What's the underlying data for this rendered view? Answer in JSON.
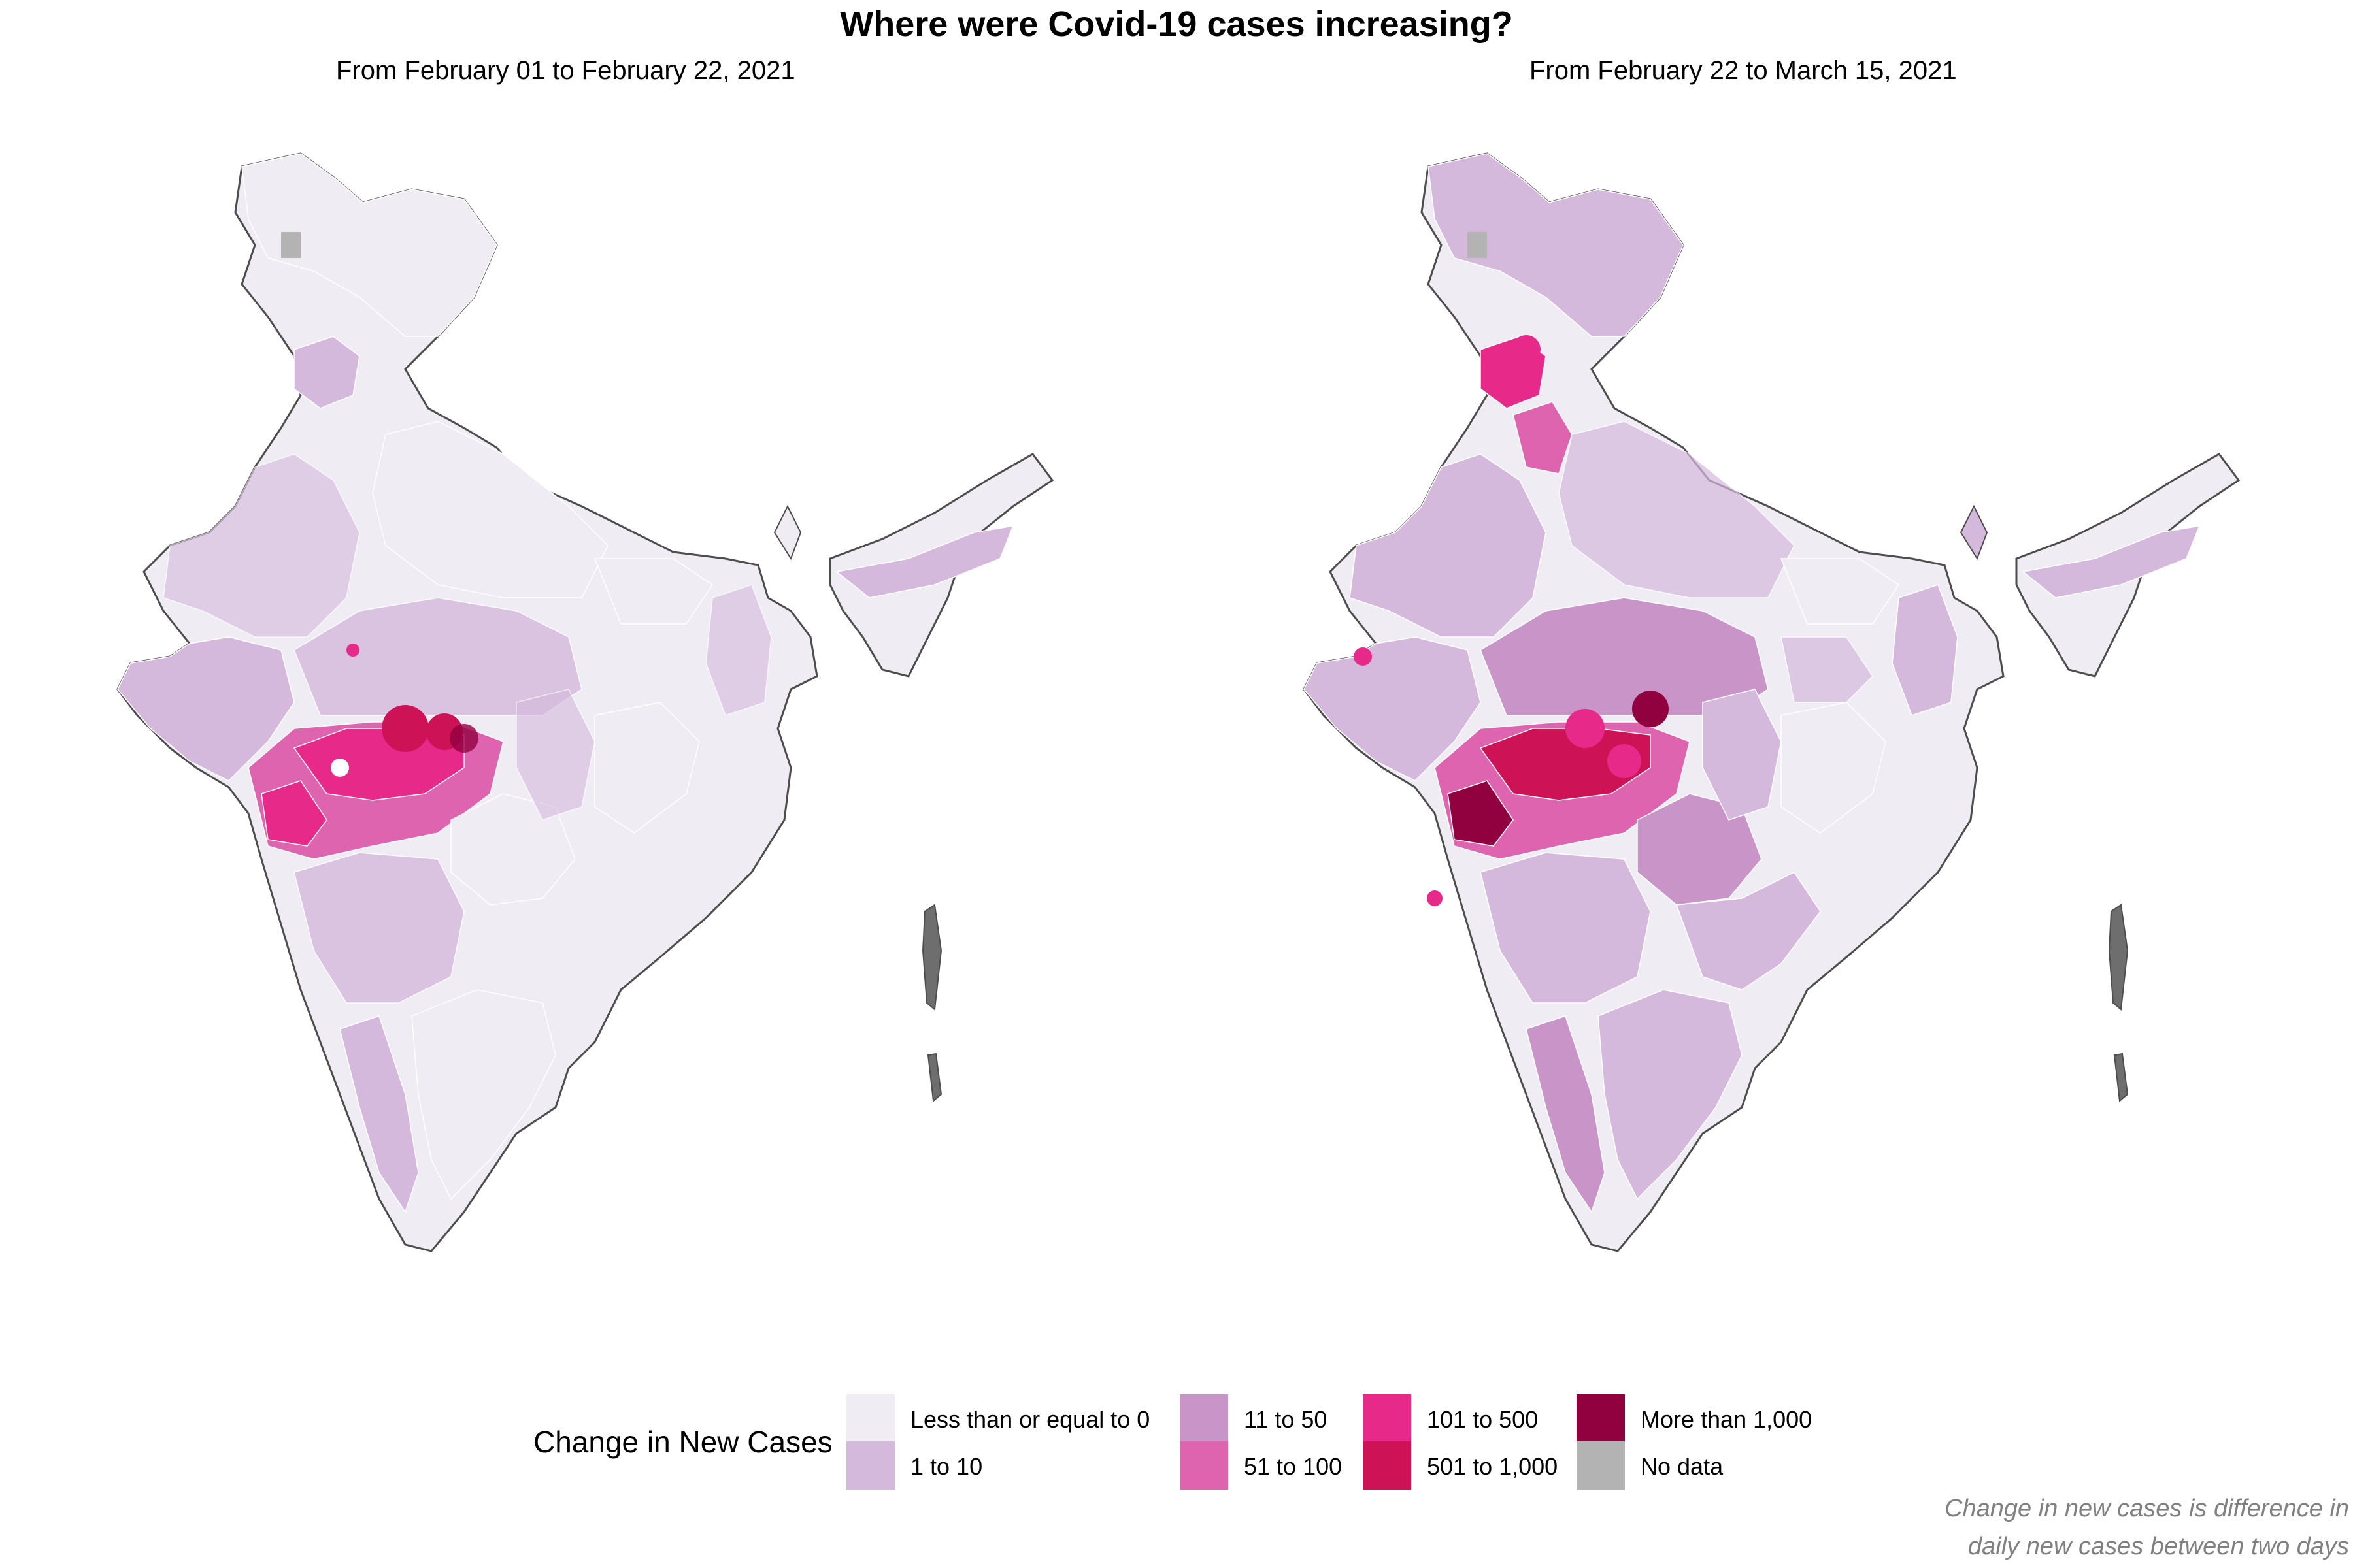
{
  "title": "Where were Covid-19 cases increasing?",
  "panels": [
    {
      "subtitle": "From February 01 to February 22, 2021"
    },
    {
      "subtitle": "From February 22 to March 15, 2021"
    }
  ],
  "legend": {
    "title": "Change in New Cases",
    "items": [
      {
        "label": "Less than or equal to 0",
        "color": "#efecf4"
      },
      {
        "label": "1 to 10",
        "color": "#d5b9dc"
      },
      {
        "label": "11 to 50",
        "color": "#c994c8"
      },
      {
        "label": "51 to 100",
        "color": "#df64af"
      },
      {
        "label": "101 to 500",
        "color": "#e7298a"
      },
      {
        "label": "501 to 1,000",
        "color": "#ce1256"
      },
      {
        "label": "More than 1,000",
        "color": "#91003f"
      },
      {
        "label": "No data",
        "color": "#b3b3b3"
      }
    ]
  },
  "caption": {
    "line1": "Change in new cases is difference in",
    "line2": "daily new cases between two days"
  },
  "colors": {
    "border": "#4d4d4d",
    "background": "#ffffff"
  }
}
